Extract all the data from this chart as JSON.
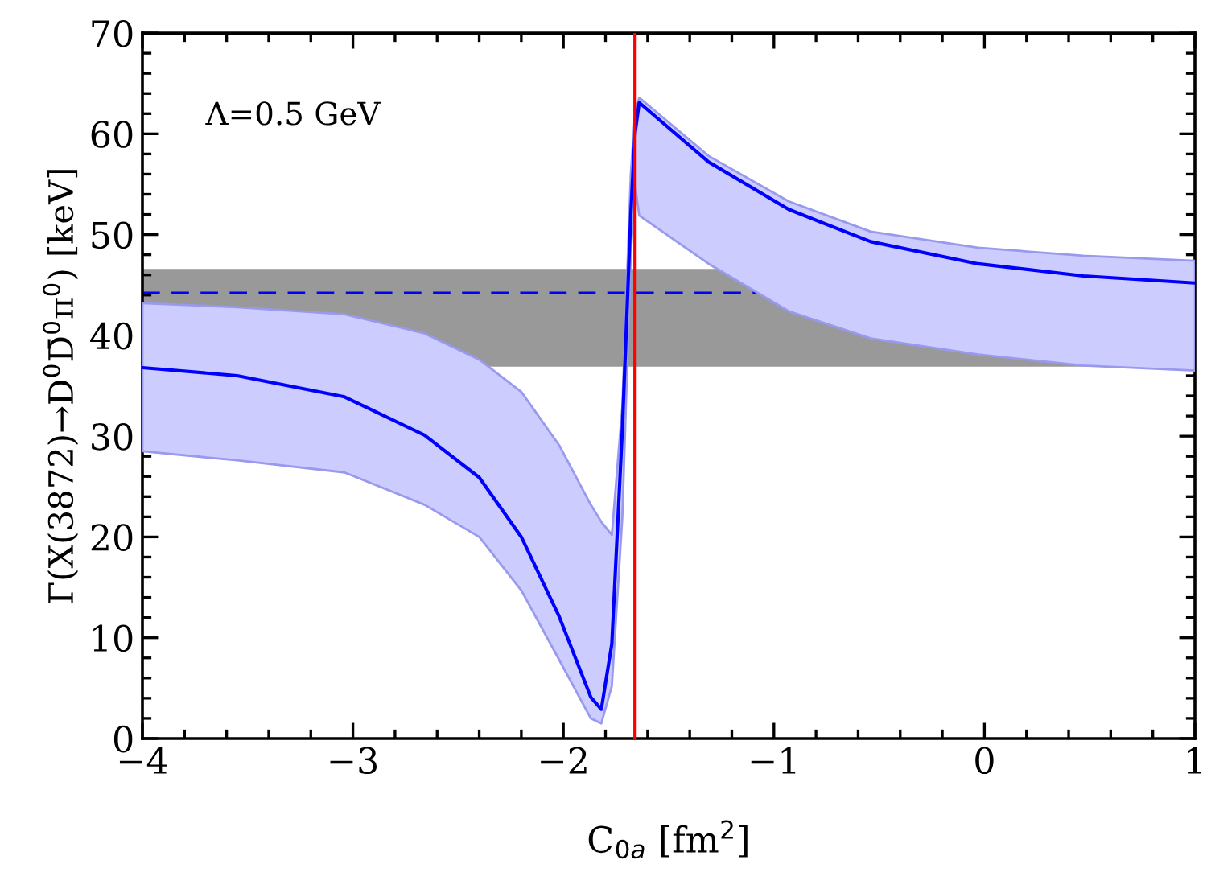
{
  "chart_data": {
    "type": "line",
    "xlabel": "C$_{0a}$ [fm$^{2}$]",
    "ylabel": "Γ(X(3872)→D$^{0}$D̄$^{0}$π$^{0}$) [keV]",
    "annotations": [
      "Λ=0.5 GeV"
    ],
    "x": [
      -4.0,
      -3.55,
      -3.04,
      -2.66,
      -2.4,
      -2.2,
      -2.02,
      -1.87,
      -1.82,
      -1.77,
      -1.72,
      -1.68,
      -1.66,
      -1.64,
      -1.31,
      -0.93,
      -0.54,
      -0.03,
      0.47,
      1.0
    ],
    "series": [
      {
        "color": "#0000ff",
        "values": [
          36.8,
          36.0,
          33.9,
          30.1,
          25.9,
          20.0,
          12.1,
          4.1,
          2.9,
          9.4,
          30.7,
          52,
          60,
          63.1,
          57.2,
          52.5,
          49.3,
          47.1,
          45.9,
          45.2
        ],
        "lower": [
          28.5,
          27.6,
          26.4,
          23.2,
          20.0,
          14.7,
          7.8,
          2.0,
          1.5,
          5.2,
          22,
          48,
          55,
          51.9,
          47.1,
          42.4,
          39.7,
          38.1,
          37.0,
          36.5
        ],
        "upper": [
          43.2,
          42.8,
          42.1,
          40.2,
          37.6,
          34.4,
          29.1,
          23.2,
          21.5,
          20.2,
          33,
          56,
          62,
          63.6,
          57.8,
          53.3,
          50.3,
          48.7,
          47.9,
          47.4
        ]
      }
    ],
    "ref_lines": [
      {
        "axis": "y",
        "value": 44.2,
        "color": "#0000ff",
        "line_style": "dashed"
      },
      {
        "axis": "x",
        "value": -1.66,
        "color": "#ff0000",
        "line_style": "solid"
      }
    ],
    "bands": [
      {
        "axis": "y",
        "from": 36.9,
        "to": 46.6,
        "color": "#999999"
      }
    ],
    "xlim": [
      -4,
      1
    ],
    "xticks": [
      -4,
      -3,
      -2,
      -1,
      0,
      1
    ],
    "ylim": [
      0,
      70
    ],
    "yticks": [
      0,
      10,
      20,
      30,
      40,
      50,
      60,
      70
    ],
    "grid": false,
    "legend": false,
    "marker": "none",
    "line_style": "solid"
  }
}
